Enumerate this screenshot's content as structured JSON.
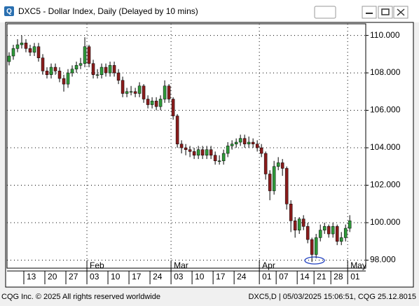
{
  "window": {
    "title": "DXC5 - Dollar Index, Daily (Delayed by 10 mins)"
  },
  "footer": {
    "left": "CQG Inc. © 2025 All rights reserved worldwide",
    "right": "DXC5,D | 05/03/2025 15:06:51, CQG 25.12.8015"
  },
  "chart_data": {
    "type": "candlestick",
    "open": [
      108.6,
      108.9,
      109.3,
      109.5,
      109.6,
      109.3,
      109.1,
      109.4,
      108.8,
      108.1,
      107.9,
      108.3,
      108.1,
      107.7,
      107.4,
      108.0,
      108.2,
      108.4,
      108.5,
      109.4,
      108.5,
      107.9,
      107.9,
      108.3,
      108.0,
      108.4,
      108.0,
      107.6,
      106.9,
      107.0,
      107.0,
      106.9,
      107.3,
      106.6,
      106.3,
      106.5,
      106.2,
      106.6,
      107.3,
      106.6,
      105.7,
      104.2,
      104.0,
      103.9,
      103.8,
      103.6,
      103.9,
      103.6,
      103.9,
      103.6,
      103.3,
      103.3,
      103.7,
      104.1,
      104.2,
      104.3,
      104.5,
      104.2,
      104.3,
      104.2,
      104.0,
      103.7,
      102.6,
      101.7,
      103.0,
      103.2,
      102.9,
      101.0,
      100.1,
      99.6,
      100.2,
      99.8,
      99.1,
      98.3,
      99.2,
      99.6,
      99.8,
      99.4,
      99.8,
      99.0,
      99.2,
      99.7
    ],
    "high": [
      109.1,
      109.5,
      109.8,
      110.0,
      109.8,
      109.5,
      109.6,
      109.6,
      109.0,
      108.3,
      108.5,
      108.5,
      108.3,
      107.9,
      108.2,
      108.4,
      108.6,
      108.8,
      109.9,
      109.5,
      108.7,
      108.2,
      108.5,
      108.5,
      108.6,
      108.6,
      108.2,
      107.8,
      107.2,
      107.3,
      107.2,
      107.5,
      107.4,
      106.8,
      106.7,
      106.7,
      106.8,
      107.6,
      107.4,
      106.7,
      105.8,
      104.4,
      104.2,
      104.1,
      104.0,
      104.1,
      104.1,
      104.1,
      104.1,
      103.8,
      103.6,
      103.9,
      104.3,
      104.4,
      104.5,
      104.7,
      104.7,
      104.6,
      104.5,
      104.4,
      104.2,
      103.8,
      102.8,
      103.3,
      103.5,
      103.4,
      103.0,
      101.2,
      100.3,
      100.3,
      100.4,
      100.0,
      99.2,
      99.4,
      99.9,
      100.0,
      99.9,
      100.0,
      99.9,
      99.5,
      99.9,
      100.4
    ],
    "low": [
      108.4,
      108.7,
      109.1,
      109.3,
      109.1,
      108.9,
      108.9,
      108.6,
      107.9,
      107.7,
      107.7,
      107.9,
      107.5,
      107.0,
      107.2,
      107.8,
      108.0,
      108.2,
      108.3,
      108.3,
      107.7,
      107.7,
      107.7,
      107.8,
      107.8,
      107.8,
      107.4,
      106.7,
      106.7,
      106.8,
      106.7,
      106.7,
      106.4,
      106.1,
      106.1,
      106.0,
      106.0,
      106.4,
      106.4,
      105.5,
      104.0,
      103.7,
      103.6,
      103.5,
      103.4,
      103.4,
      103.4,
      103.4,
      103.4,
      103.1,
      103.1,
      103.1,
      103.5,
      103.9,
      104.0,
      104.1,
      104.0,
      104.0,
      104.0,
      103.8,
      103.5,
      102.3,
      101.2,
      101.5,
      102.8,
      102.5,
      100.7,
      99.5,
      99.2,
      99.4,
      99.6,
      98.9,
      97.9,
      98.1,
      99.0,
      99.4,
      99.2,
      99.2,
      98.8,
      98.8,
      99.0,
      99.5
    ],
    "close": [
      108.9,
      109.3,
      109.5,
      109.6,
      109.3,
      109.1,
      109.4,
      108.8,
      108.1,
      107.9,
      108.3,
      108.1,
      107.7,
      107.4,
      108.0,
      108.2,
      108.4,
      108.5,
      109.4,
      108.5,
      107.9,
      107.9,
      108.3,
      108.0,
      108.4,
      108.0,
      107.6,
      106.9,
      107.0,
      107.0,
      106.9,
      107.3,
      106.6,
      106.3,
      106.5,
      106.2,
      106.6,
      107.3,
      106.6,
      105.7,
      104.2,
      104.0,
      103.9,
      103.8,
      103.6,
      103.9,
      103.6,
      103.9,
      103.6,
      103.3,
      103.3,
      103.7,
      104.1,
      104.2,
      104.3,
      104.5,
      104.2,
      104.3,
      104.2,
      104.0,
      103.7,
      102.6,
      101.7,
      103.0,
      103.2,
      102.9,
      101.0,
      100.1,
      99.6,
      100.2,
      99.8,
      99.1,
      98.3,
      99.2,
      99.6,
      99.8,
      99.4,
      99.8,
      99.0,
      99.2,
      99.7,
      100.1
    ],
    "up_color": "#2f9a3a",
    "down_color": "#8b1c1c",
    "xlim": [
      -0.5,
      84.8
    ],
    "xticks": [
      {
        "value": 4,
        "label": "13"
      },
      {
        "value": 9,
        "label": "20"
      },
      {
        "value": 14,
        "label": "27"
      },
      {
        "value": 19,
        "label": "03"
      },
      {
        "value": 24,
        "label": "10"
      },
      {
        "value": 29,
        "label": "17"
      },
      {
        "value": 34,
        "label": "24"
      },
      {
        "value": 39,
        "label": "03"
      },
      {
        "value": 44,
        "label": "10"
      },
      {
        "value": 49,
        "label": "17"
      },
      {
        "value": 54,
        "label": "24"
      },
      {
        "value": 60,
        "label": "01"
      },
      {
        "value": 64,
        "label": "07"
      },
      {
        "value": 69,
        "label": "14"
      },
      {
        "value": 73,
        "label": "21"
      },
      {
        "value": 77,
        "label": "28"
      },
      {
        "value": 81,
        "label": "01"
      }
    ],
    "month_ticks": [
      {
        "value": 19,
        "label": "Feb"
      },
      {
        "value": 39,
        "label": "Mar"
      },
      {
        "value": 60,
        "label": "Apr"
      },
      {
        "value": 81,
        "label": "May"
      }
    ],
    "ylim": [
      97.57,
      110.62
    ],
    "yticks": [
      {
        "value": 98,
        "label": "98.000"
      },
      {
        "value": 100,
        "label": "100.000"
      },
      {
        "value": 102,
        "label": "102.000"
      },
      {
        "value": 104,
        "label": "104.000"
      },
      {
        "value": 106,
        "label": "106.000"
      },
      {
        "value": 108,
        "label": "108.000"
      },
      {
        "value": 110,
        "label": "110.000"
      }
    ],
    "grid": true
  }
}
